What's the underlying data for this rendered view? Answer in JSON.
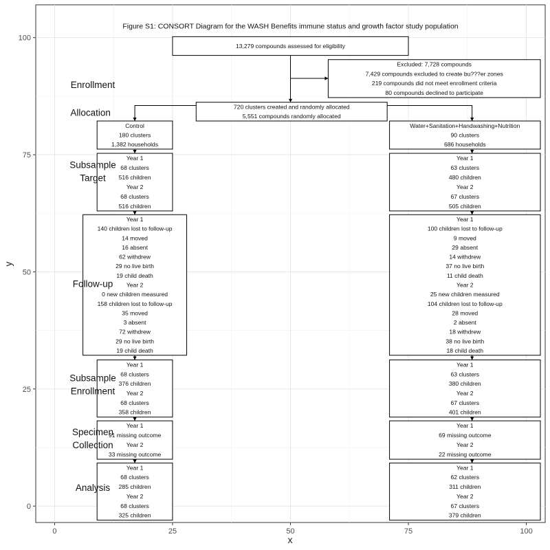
{
  "chart_data": {
    "type": "diagram",
    "title": "Figure S1: CONSORT Diagram for the WASH Benefits immune status and growth factor study population",
    "xlabel": "x",
    "ylabel": "y",
    "xlim": [
      -4,
      104
    ],
    "ylim": [
      -3.5,
      107
    ],
    "x_ticks": [
      0,
      25,
      50,
      75,
      100
    ],
    "y_ticks": [
      0,
      25,
      50,
      75,
      100
    ],
    "grid": true,
    "stage_labels": [
      {
        "id": "enrollment",
        "lines": [
          "Enrollment"
        ],
        "x": 3,
        "y": 90
      },
      {
        "id": "allocation",
        "lines": [
          "Allocation"
        ],
        "x": 2.5,
        "y": 84
      },
      {
        "id": "subsample-target",
        "lines": [
          "Subsample",
          "Target"
        ],
        "x": 3,
        "y": 71.5
      },
      {
        "id": "follow-up",
        "lines": [
          "Follow-up"
        ],
        "x": 3,
        "y": 47.5
      },
      {
        "id": "subsample-enrollment",
        "lines": [
          "Subsample",
          "Enrollment"
        ],
        "x": 3,
        "y": 26
      },
      {
        "id": "specimen-collection",
        "lines": [
          "Specimen",
          "Collection"
        ],
        "x": 3,
        "y": 14.5
      },
      {
        "id": "analysis",
        "lines": [
          "Analysis"
        ],
        "x": 3,
        "y": 4
      }
    ],
    "boxes": [
      {
        "id": "assessed",
        "x0": 25,
        "x1": 75,
        "y0": 96.2,
        "y1": 100.2,
        "lines": [
          "13,279 compounds assessed for eligibility"
        ]
      },
      {
        "id": "excluded",
        "x0": 58,
        "x1": 104,
        "y0": 87.2,
        "y1": 95.3,
        "lines": [
          "Excluded: 7,728 compounds",
          "7,429 compounds excluded to create bu???er zones",
          "219 compounds did not meet enrollment criteria",
          "80 compounds declined to participate"
        ]
      },
      {
        "id": "allocated",
        "x0": 30,
        "x1": 70.5,
        "y0": 82.2,
        "y1": 86.2,
        "lines": [
          "720 clusters created and randomly allocated",
          "5,551 compounds randomly allocated"
        ]
      },
      {
        "id": "control-arm",
        "x0": 9,
        "x1": 25,
        "y0": 76.2,
        "y1": 82.2,
        "lines": [
          "Control",
          "180 clusters",
          "1,382 households"
        ]
      },
      {
        "id": "wshn-arm",
        "x0": 71,
        "x1": 104,
        "y0": 76.2,
        "y1": 82.2,
        "lines": [
          "Water+Sanitation+Handwashing+Nutrition",
          "90 clusters",
          "686 households"
        ]
      },
      {
        "id": "control-target",
        "x0": 9,
        "x1": 25,
        "y0": 63,
        "y1": 75.3,
        "lines": [
          "Year 1",
          "68 clusters",
          "516 children",
          "Year 2",
          "68 clusters",
          "516 children"
        ]
      },
      {
        "id": "wshn-target",
        "x0": 71,
        "x1": 104,
        "y0": 63,
        "y1": 75.3,
        "lines": [
          "Year 1",
          "63 clusters",
          "480 children",
          "Year 2",
          "67 clusters",
          "505 children"
        ]
      },
      {
        "id": "control-followup",
        "x0": 6,
        "x1": 28,
        "y0": 32.2,
        "y1": 62.2,
        "lines": [
          "Year 1",
          "140 children lost to follow-up",
          "14 moved",
          "16 absent",
          "62 withdrew",
          "29 no live birth",
          "19 child death",
          "Year 2",
          "0 new children measured",
          "158 children lost to follow-up",
          "35 moved",
          "3 absent",
          "72 withdrew",
          "29 no live birth",
          "19 child death"
        ]
      },
      {
        "id": "wshn-followup",
        "x0": 71,
        "x1": 104,
        "y0": 32.2,
        "y1": 62.2,
        "lines": [
          "Year 1",
          "100 children lost to follow-up",
          "9 moved",
          "29 absent",
          "14 withdrew",
          "37 no live birth",
          "11 child death",
          "Year 2",
          "25 new children measured",
          "104 children lost to follow-up",
          "28 moved",
          "2 absent",
          "18 withdrew",
          "38 no live birth",
          "18 child death"
        ]
      },
      {
        "id": "control-sub-enroll",
        "x0": 9,
        "x1": 25,
        "y0": 19,
        "y1": 31.2,
        "lines": [
          "Year 1",
          "68 clusters",
          "376 children",
          "Year 2",
          "68 clusters",
          "358 children"
        ]
      },
      {
        "id": "wshn-sub-enroll",
        "x0": 71,
        "x1": 104,
        "y0": 19,
        "y1": 31.2,
        "lines": [
          "Year 1",
          "63 clusters",
          "380 children",
          "Year 2",
          "67 clusters",
          "401 children"
        ]
      },
      {
        "id": "control-specimen",
        "x0": 9,
        "x1": 25,
        "y0": 10,
        "y1": 18.2,
        "lines": [
          "Year 1",
          "91 missing outcome",
          "Year 2",
          "33 missing outcome"
        ]
      },
      {
        "id": "wshn-specimen",
        "x0": 71,
        "x1": 104,
        "y0": 10,
        "y1": 18.2,
        "lines": [
          "Year 1",
          "69 missing outcome",
          "Year 2",
          "22 missing outcome"
        ]
      },
      {
        "id": "control-analysis",
        "x0": 9,
        "x1": 25,
        "y0": -3,
        "y1": 9.2,
        "lines": [
          "Year 1",
          "68 clusters",
          "285 children",
          "Year 2",
          "68 clusters",
          "325 children"
        ]
      },
      {
        "id": "wshn-analysis",
        "x0": 71,
        "x1": 104,
        "y0": -3,
        "y1": 9.2,
        "lines": [
          "Year 1",
          "62 clusters",
          "311 children",
          "Year 2",
          "67 clusters",
          "379 children"
        ]
      }
    ],
    "connectors": [
      {
        "id": "assessed-to-allocated",
        "points": [
          [
            50,
            96.2
          ],
          [
            50,
            86.2
          ]
        ],
        "arrow": true
      },
      {
        "id": "to-excluded",
        "points": [
          [
            50,
            91.3
          ],
          [
            58,
            91.3
          ]
        ],
        "arrow": true
      },
      {
        "id": "allocated-to-control",
        "points": [
          [
            30,
            85.5
          ],
          [
            17,
            85.5
          ],
          [
            17,
            82.2
          ]
        ],
        "arrow": true
      },
      {
        "id": "allocated-to-wshn",
        "points": [
          [
            70.5,
            85.5
          ],
          [
            88.5,
            85.5
          ],
          [
            88.5,
            82.2
          ]
        ],
        "arrow": true
      },
      {
        "id": "control-arm-to-target",
        "points": [
          [
            17,
            76.2
          ],
          [
            17,
            75.3
          ]
        ],
        "arrow": true
      },
      {
        "id": "wshn-arm-to-target",
        "points": [
          [
            88.5,
            76.2
          ],
          [
            88.5,
            75.3
          ]
        ],
        "arrow": true
      },
      {
        "id": "control-target-to-followup",
        "points": [
          [
            17,
            63
          ],
          [
            17,
            62.2
          ]
        ],
        "arrow": true
      },
      {
        "id": "wshn-target-to-followup",
        "points": [
          [
            88.5,
            63
          ],
          [
            88.5,
            62.2
          ]
        ],
        "arrow": true
      },
      {
        "id": "control-followup-to-sub-enroll",
        "points": [
          [
            17,
            32.2
          ],
          [
            17,
            31.2
          ]
        ],
        "arrow": true
      },
      {
        "id": "wshn-followup-to-sub-enroll",
        "points": [
          [
            88.5,
            32.2
          ],
          [
            88.5,
            31.2
          ]
        ],
        "arrow": true
      },
      {
        "id": "control-sub-enroll-to-specimen",
        "points": [
          [
            17,
            19
          ],
          [
            17,
            18.2
          ]
        ],
        "arrow": true
      },
      {
        "id": "wshn-sub-enroll-to-specimen",
        "points": [
          [
            88.5,
            19
          ],
          [
            88.5,
            18.2
          ]
        ],
        "arrow": true
      },
      {
        "id": "control-specimen-to-analysis",
        "points": [
          [
            17,
            10
          ],
          [
            17,
            9.2
          ]
        ],
        "arrow": true
      },
      {
        "id": "wshn-specimen-to-analysis",
        "points": [
          [
            88.5,
            10
          ],
          [
            88.5,
            9.2
          ]
        ],
        "arrow": true
      }
    ]
  }
}
